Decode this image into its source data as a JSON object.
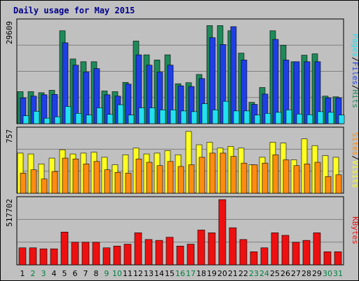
{
  "title": "Daily usage for May 2015",
  "colors": {
    "background": "#c0c0c0",
    "frame": "#000080",
    "hits": "#1e8a5a",
    "files": "#1f3fe6",
    "pages": "#22e0f0",
    "visits": "#ffff22",
    "sites": "#ff8c10",
    "kbytes": "#ee1010",
    "weekday": "#000000",
    "weekend": "#008040"
  },
  "chart_data": [
    {
      "type": "bar",
      "panel": "top",
      "ymax_label": "29609",
      "ymax": 29609,
      "legend": [
        "Pages",
        "/",
        "Files",
        "/",
        "Hits"
      ],
      "categories": [
        "1",
        "2",
        "3",
        "4",
        "5",
        "6",
        "7",
        "8",
        "9",
        "10",
        "11",
        "12",
        "13",
        "14",
        "15",
        "16",
        "17",
        "18",
        "19",
        "20",
        "21",
        "22",
        "23",
        "24",
        "25",
        "26",
        "27",
        "28",
        "29",
        "30",
        "31"
      ],
      "series": [
        {
          "name": "Hits",
          "values": [
            9300,
            9300,
            9000,
            9700,
            27000,
            18800,
            18000,
            18000,
            9500,
            9300,
            12000,
            24000,
            20000,
            18500,
            20000,
            11600,
            11900,
            14300,
            28500,
            28500,
            27000,
            20500,
            6200,
            10500,
            27000,
            22800,
            18000,
            19900,
            20300,
            8000,
            7800
          ]
        },
        {
          "name": "Files",
          "values": [
            7500,
            8000,
            8400,
            8500,
            23500,
            17000,
            15000,
            16000,
            8400,
            8000,
            11500,
            20000,
            17000,
            15000,
            17000,
            11000,
            10800,
            13100,
            25000,
            23000,
            28200,
            18500,
            5600,
            8600,
            24500,
            18500,
            18000,
            18000,
            18000,
            7500,
            7500
          ]
        },
        {
          "name": "Pages",
          "values": [
            2300,
            3600,
            1600,
            2000,
            5000,
            3000,
            2500,
            4600,
            2700,
            5500,
            2500,
            4600,
            4600,
            4000,
            4000,
            3700,
            3500,
            5800,
            4000,
            6500,
            3700,
            3700,
            2500,
            3000,
            3300,
            4000,
            2800,
            2600,
            3500,
            3300,
            2500
          ]
        }
      ]
    },
    {
      "type": "bar",
      "panel": "middle",
      "ymax_label": "757",
      "ymax": 757,
      "legend": [
        "Sites",
        "/",
        "Visits"
      ],
      "categories": [
        "1",
        "2",
        "3",
        "4",
        "5",
        "6",
        "7",
        "8",
        "9",
        "10",
        "11",
        "12",
        "13",
        "14",
        "15",
        "16",
        "17",
        "18",
        "19",
        "20",
        "21",
        "22",
        "23",
        "24",
        "25",
        "26",
        "27",
        "28",
        "29",
        "30",
        "31"
      ],
      "series": [
        {
          "name": "Visits",
          "values": [
            480,
            470,
            350,
            420,
            520,
            470,
            480,
            490,
            430,
            340,
            460,
            540,
            470,
            480,
            510,
            460,
            740,
            580,
            610,
            540,
            560,
            540,
            340,
            430,
            610,
            600,
            400,
            650,
            570,
            450,
            430
          ]
        },
        {
          "name": "Sites",
          "values": [
            240,
            280,
            170,
            260,
            420,
            410,
            350,
            380,
            280,
            250,
            240,
            410,
            370,
            330,
            380,
            320,
            340,
            430,
            480,
            480,
            440,
            360,
            340,
            360,
            460,
            400,
            330,
            350,
            370,
            200,
            220
          ]
        }
      ]
    },
    {
      "type": "bar",
      "panel": "bottom",
      "ymax_label": "517702",
      "ymax": 517702,
      "legend": [
        "KBytes"
      ],
      "categories": [
        "1",
        "2",
        "3",
        "4",
        "5",
        "6",
        "7",
        "8",
        "9",
        "10",
        "11",
        "12",
        "13",
        "14",
        "15",
        "16",
        "17",
        "18",
        "19",
        "20",
        "21",
        "22",
        "23",
        "24",
        "25",
        "26",
        "27",
        "28",
        "29",
        "30",
        "31"
      ],
      "series": [
        {
          "name": "KBytes",
          "values": [
            135000,
            135000,
            127000,
            127000,
            260000,
            179000,
            179000,
            179000,
            135000,
            149000,
            164000,
            254000,
            201000,
            194000,
            219000,
            149000,
            164000,
            276000,
            254000,
            517000,
            294000,
            201000,
            104000,
            135000,
            254000,
            234000,
            179000,
            194000,
            254000,
            104000,
            104000
          ]
        }
      ]
    }
  ]
}
